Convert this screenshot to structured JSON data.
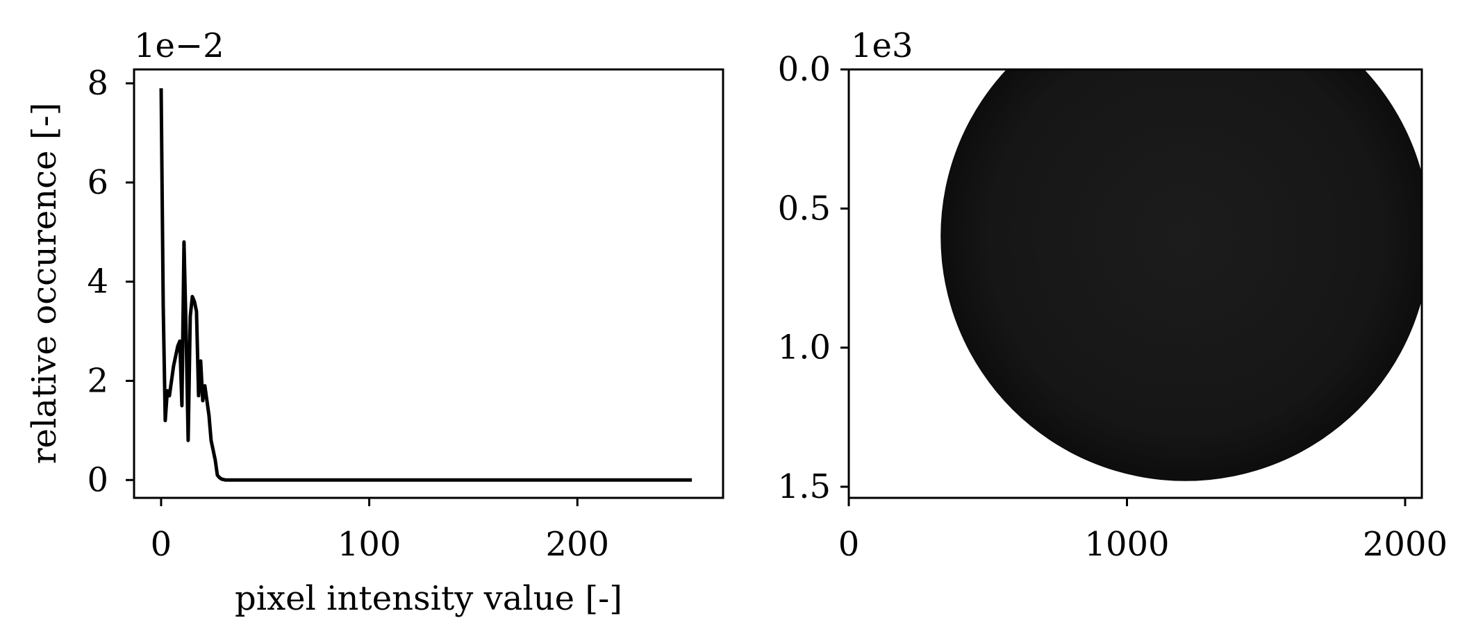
{
  "chart_data": [
    {
      "type": "line",
      "title": "",
      "xlabel": "pixel intensity value [-]",
      "ylabel": "relative occurence [-]",
      "xlim": [
        -13,
        270
      ],
      "ylim": [
        -0.0036,
        0.0828
      ],
      "y_offset_label": "1e−2",
      "xticks": [
        0,
        100,
        200
      ],
      "xtick_labels": [
        "0",
        "100",
        "200"
      ],
      "yticks": [
        0,
        0.02,
        0.04,
        0.06,
        0.08
      ],
      "ytick_labels": [
        "0",
        "2",
        "4",
        "6",
        "8"
      ],
      "grid": false,
      "line_color": "#000000",
      "series": [
        {
          "x": [
            0,
            1,
            2,
            3,
            4,
            5,
            6,
            7,
            8,
            9,
            10,
            11,
            12,
            13,
            14,
            15,
            16,
            17,
            18,
            19,
            20,
            21,
            22,
            23,
            24,
            25,
            26,
            27,
            28,
            29,
            30,
            31,
            32,
            33,
            34,
            35,
            40,
            50,
            100,
            150,
            200,
            255
          ],
          "y": [
            0.079,
            0.035,
            0.012,
            0.018,
            0.017,
            0.02,
            0.023,
            0.025,
            0.027,
            0.028,
            0.015,
            0.048,
            0.03,
            0.008,
            0.033,
            0.037,
            0.036,
            0.034,
            0.017,
            0.024,
            0.016,
            0.019,
            0.016,
            0.013,
            0.008,
            0.006,
            0.004,
            0.001,
            0.0005,
            0.0002,
            0.0001,
            0,
            0,
            0,
            0,
            0,
            0,
            0,
            0,
            0,
            0,
            0
          ]
        }
      ]
    },
    {
      "type": "image",
      "title": "",
      "offset_label": "1e3",
      "xlim": [
        0,
        2060
      ],
      "ylim": [
        1540,
        0
      ],
      "xticks": [
        0,
        1000,
        2000
      ],
      "xtick_labels": [
        "0",
        "1000",
        "2000"
      ],
      "yticks": [
        0,
        500,
        1000,
        1500
      ],
      "ytick_labels": [
        "0.0",
        "0.5",
        "1.0",
        "1.5"
      ],
      "disk_center": [
        1210,
        600
      ],
      "disk_radius": 880,
      "disk_color": "#141414"
    }
  ]
}
